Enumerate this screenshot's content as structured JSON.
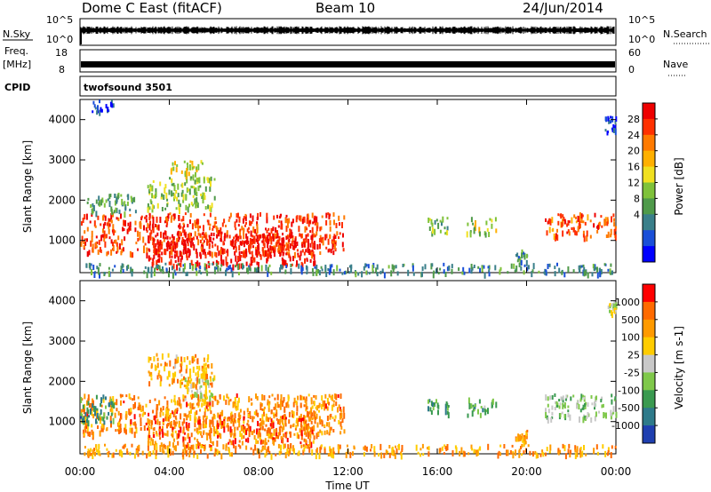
{
  "header": {
    "station": "Dome C East (fitACF)",
    "beam": "Beam 10",
    "date": "24/Jun/2014"
  },
  "top_panels": {
    "nsky_label": "N.Sky",
    "nsearch_label": "N.Search",
    "count_ticks": [
      "10^5",
      "10^0"
    ],
    "freq_label": "Freq.",
    "freq_unit": "[MHz]",
    "freq_ticks": [
      "18",
      "8"
    ],
    "nave_label": "Nave",
    "nave_ticks": [
      "60",
      "0"
    ],
    "cpid_label": "CPID",
    "cpid_value": "twofsound 3501"
  },
  "chart_data": [
    {
      "type": "heatmap",
      "name": "power",
      "ylabel": "Slant Range [km]",
      "yticks": [
        "1000",
        "2000",
        "3000",
        "4000"
      ],
      "ylim": [
        200,
        4500
      ],
      "x_ticks": [
        "00:00",
        "04:00",
        "08:00",
        "12:00",
        "16:00",
        "20:00",
        "00:00"
      ],
      "xlim_hours": [
        0,
        24
      ],
      "colorbar_label": "Power [dB]",
      "colorbar_ticks": [
        "4",
        "8",
        "12",
        "16",
        "20",
        "24",
        "28"
      ],
      "colorbar_colors": [
        "#0000ff",
        "#1a4fd8",
        "#3a7f8a",
        "#4f9a4a",
        "#7fc23a",
        "#f0e020",
        "#ffb000",
        "#ff7a00",
        "#ff3000",
        "#ee0000"
      ],
      "regions": [
        {
          "x": [
            0.0,
            11.8
          ],
          "y": [
            700,
            1700
          ],
          "level": 0.85
        },
        {
          "x": [
            3.0,
            10.5
          ],
          "y": [
            400,
            1200
          ],
          "level": 0.95
        },
        {
          "x": [
            0.3,
            2.5
          ],
          "y": [
            1700,
            2200
          ],
          "level": 0.35
        },
        {
          "x": [
            3.0,
            6.0
          ],
          "y": [
            1800,
            2600
          ],
          "level": 0.45
        },
        {
          "x": [
            4.0,
            5.5
          ],
          "y": [
            2600,
            3000
          ],
          "level": 0.55
        },
        {
          "x": [
            0.5,
            1.5
          ],
          "y": [
            4200,
            4500
          ],
          "level": 0.1
        },
        {
          "x": [
            15.5,
            16.5
          ],
          "y": [
            1200,
            1600
          ],
          "level": 0.4
        },
        {
          "x": [
            17.3,
            18.6
          ],
          "y": [
            1200,
            1600
          ],
          "level": 0.5
        },
        {
          "x": [
            19.5,
            20.0
          ],
          "y": [
            500,
            800
          ],
          "level": 0.3
        },
        {
          "x": [
            20.8,
            24.0
          ],
          "y": [
            1100,
            1700
          ],
          "level": 0.8
        },
        {
          "x": [
            23.5,
            24.0
          ],
          "y": [
            3700,
            4100
          ],
          "level": 0.15
        },
        {
          "x": [
            0.0,
            24.0
          ],
          "y": [
            200,
            450
          ],
          "level": 0.3
        }
      ]
    },
    {
      "type": "heatmap",
      "name": "velocity",
      "ylabel": "Slant Range [km]",
      "yticks": [
        "1000",
        "2000",
        "3000",
        "4000"
      ],
      "ylim": [
        200,
        4500
      ],
      "x_ticks": [
        "00:00",
        "04:00",
        "08:00",
        "12:00",
        "16:00",
        "20:00",
        "00:00"
      ],
      "xlim_hours": [
        0,
        24
      ],
      "xlabel": "Time UT",
      "colorbar_label": "Velocity [m s-1]",
      "colorbar_ticks": [
        "1000",
        "500",
        "100",
        "25",
        "-25",
        "-100",
        "-500",
        "-1000"
      ],
      "colorbar_colors": [
        "#1f3fb0",
        "#2e7a8a",
        "#3a9a50",
        "#7fc84a",
        "#c8c8c8",
        "#ffcc00",
        "#ff9a00",
        "#ff6a00",
        "#ff0000"
      ],
      "regions": [
        {
          "x": [
            0.0,
            11.8
          ],
          "y": [
            700,
            1700
          ],
          "level": 0.75
        },
        {
          "x": [
            3.0,
            10.5
          ],
          "y": [
            400,
            1200
          ],
          "level": 0.8
        },
        {
          "x": [
            0.0,
            1.5
          ],
          "y": [
            1000,
            1700
          ],
          "level": 0.25
        },
        {
          "x": [
            4.5,
            6.0
          ],
          "y": [
            1500,
            2100
          ],
          "level": 0.48
        },
        {
          "x": [
            3.0,
            6.0
          ],
          "y": [
            1900,
            2700
          ],
          "level": 0.7
        },
        {
          "x": [
            15.5,
            16.5
          ],
          "y": [
            1200,
            1600
          ],
          "level": 0.3
        },
        {
          "x": [
            17.3,
            18.6
          ],
          "y": [
            1200,
            1600
          ],
          "level": 0.35
        },
        {
          "x": [
            19.4,
            20.0
          ],
          "y": [
            500,
            800
          ],
          "level": 0.75
        },
        {
          "x": [
            20.8,
            24.0
          ],
          "y": [
            1100,
            1700
          ],
          "level": 0.4
        },
        {
          "x": [
            23.6,
            24.0
          ],
          "y": [
            3700,
            4000
          ],
          "level": 0.48
        },
        {
          "x": [
            0.0,
            24.0
          ],
          "y": [
            200,
            450
          ],
          "level": 0.72
        }
      ]
    }
  ]
}
